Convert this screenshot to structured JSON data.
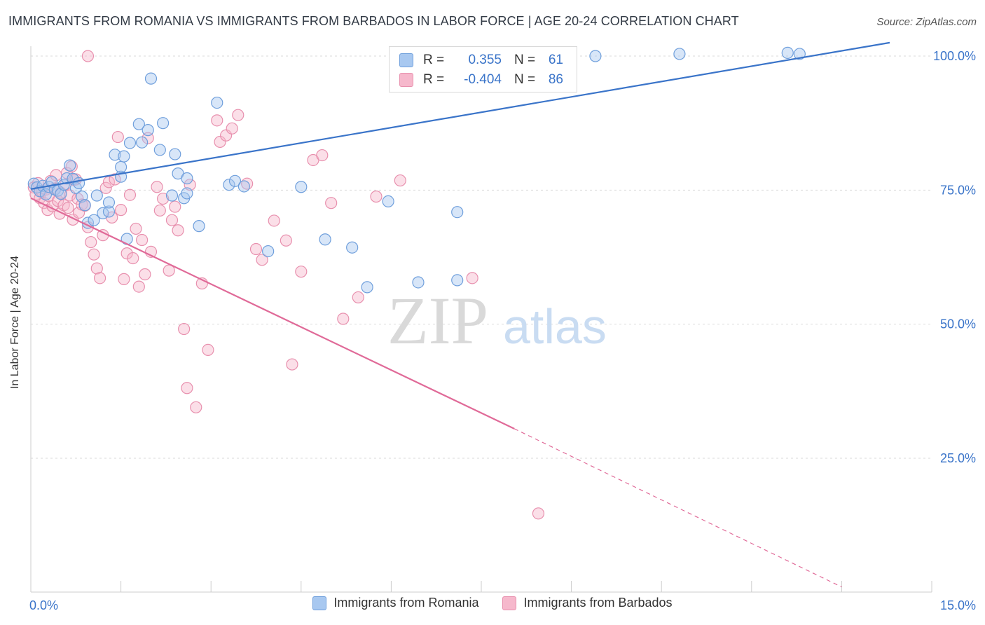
{
  "title": "IMMIGRANTS FROM ROMANIA VS IMMIGRANTS FROM BARBADOS IN LABOR FORCE | AGE 20-24 CORRELATION CHART",
  "source": "Source: ZipAtlas.com",
  "watermark": {
    "zip": "ZIP",
    "atlas": "atlas"
  },
  "legend": {
    "romania": "Immigrants from Romania",
    "barbados": "Immigrants from Barbados"
  },
  "stats": {
    "romania": {
      "r_label": "R =",
      "r_value": "0.355",
      "n_label": "N =",
      "n_value": "61"
    },
    "barbados": {
      "r_label": "R =",
      "r_value": "-0.404",
      "n_label": "N =",
      "n_value": "86"
    }
  },
  "colors": {
    "romania_fill": "#a8c8f0",
    "romania_stroke": "#6f9fdc",
    "romania_line": "#3a74c9",
    "barbados_fill": "#f6b8cc",
    "barbados_stroke": "#e890ae",
    "barbados_line": "#e06a98",
    "axis_text": "#3a74c9",
    "grid": "#d9d9d9"
  },
  "chart_data": {
    "type": "scatter",
    "title": "IMMIGRANTS FROM ROMANIA VS IMMIGRANTS FROM BARBADOS IN LABOR FORCE | AGE 20-24 CORRELATION CHART",
    "xlabel": "",
    "ylabel": "In Labor Force | Age 20-24",
    "xlim": [
      0,
      15
    ],
    "ylim": [
      0,
      105
    ],
    "x_tick_labels": [
      "0.0%",
      "15.0%"
    ],
    "y_ticks": [
      25,
      50,
      75,
      100
    ],
    "y_tick_labels": [
      "25.0%",
      "50.0%",
      "75.0%",
      "100.0%"
    ],
    "grid": true,
    "legend_position": "bottom",
    "series": [
      {
        "name": "Immigrants from Romania",
        "trend": {
          "x": [
            0.0,
            14.3
          ],
          "y": [
            75.2,
            102.5
          ],
          "dashed_from": null
        },
        "points": [
          [
            0.05,
            76.2
          ],
          [
            0.1,
            75.5
          ],
          [
            0.15,
            74.8
          ],
          [
            0.2,
            75.8
          ],
          [
            0.25,
            74.2
          ],
          [
            0.3,
            75.6
          ],
          [
            0.35,
            76.5
          ],
          [
            0.4,
            75.1
          ],
          [
            0.45,
            74.9
          ],
          [
            0.5,
            74.3
          ],
          [
            0.55,
            76.0
          ],
          [
            0.6,
            77.2
          ],
          [
            0.65,
            79.6
          ],
          [
            0.7,
            77.1
          ],
          [
            0.75,
            75.4
          ],
          [
            0.8,
            76.3
          ],
          [
            0.85,
            73.8
          ],
          [
            0.9,
            72.2
          ],
          [
            0.95,
            68.9
          ],
          [
            1.05,
            69.4
          ],
          [
            1.1,
            74.0
          ],
          [
            1.2,
            70.7
          ],
          [
            1.3,
            71.0
          ],
          [
            1.3,
            72.7
          ],
          [
            1.4,
            81.6
          ],
          [
            1.5,
            77.5
          ],
          [
            1.5,
            79.3
          ],
          [
            1.55,
            81.3
          ],
          [
            1.6,
            65.9
          ],
          [
            1.65,
            83.8
          ],
          [
            1.8,
            87.3
          ],
          [
            1.85,
            83.9
          ],
          [
            1.95,
            86.2
          ],
          [
            2.0,
            95.8
          ],
          [
            2.15,
            82.5
          ],
          [
            2.2,
            87.5
          ],
          [
            2.35,
            74.0
          ],
          [
            2.4,
            81.7
          ],
          [
            2.45,
            78.1
          ],
          [
            2.55,
            73.5
          ],
          [
            2.6,
            74.4
          ],
          [
            2.6,
            77.2
          ],
          [
            2.8,
            68.3
          ],
          [
            3.1,
            91.3
          ],
          [
            3.3,
            76.0
          ],
          [
            3.4,
            76.7
          ],
          [
            3.55,
            75.7
          ],
          [
            3.95,
            63.6
          ],
          [
            4.5,
            75.6
          ],
          [
            4.9,
            65.8
          ],
          [
            5.35,
            64.3
          ],
          [
            5.6,
            56.9
          ],
          [
            5.95,
            72.9
          ],
          [
            6.45,
            57.8
          ],
          [
            7.1,
            58.2
          ],
          [
            7.1,
            70.9
          ],
          [
            8.8,
            100.4
          ],
          [
            9.4,
            100.0
          ],
          [
            10.8,
            100.4
          ],
          [
            12.6,
            100.6
          ],
          [
            12.8,
            100.4
          ]
        ]
      },
      {
        "name": "Immigrants from Barbados",
        "trend": {
          "x": [
            0.0,
            8.05,
            13.5
          ],
          "y": [
            73.5,
            30.5,
            1.0
          ],
          "dashed_from": 8.05
        },
        "points": [
          [
            0.05,
            75.5
          ],
          [
            0.08,
            74.2
          ],
          [
            0.12,
            76.3
          ],
          [
            0.15,
            73.5
          ],
          [
            0.18,
            74.8
          ],
          [
            0.22,
            72.6
          ],
          [
            0.25,
            75.1
          ],
          [
            0.28,
            71.3
          ],
          [
            0.3,
            73.9
          ],
          [
            0.33,
            76.7
          ],
          [
            0.36,
            72.0
          ],
          [
            0.4,
            75.3
          ],
          [
            0.42,
            77.8
          ],
          [
            0.45,
            73.0
          ],
          [
            0.48,
            70.6
          ],
          [
            0.5,
            74.5
          ],
          [
            0.55,
            72.2
          ],
          [
            0.58,
            76.1
          ],
          [
            0.6,
            78.2
          ],
          [
            0.62,
            71.7
          ],
          [
            0.65,
            74.0
          ],
          [
            0.68,
            79.4
          ],
          [
            0.7,
            69.5
          ],
          [
            0.72,
            76.9
          ],
          [
            0.75,
            77.0
          ],
          [
            0.78,
            73.4
          ],
          [
            0.8,
            70.8
          ],
          [
            0.85,
            72.3
          ],
          [
            0.9,
            72.1
          ],
          [
            0.95,
            68.1
          ],
          [
            1.0,
            65.3
          ],
          [
            1.05,
            63.0
          ],
          [
            1.1,
            60.4
          ],
          [
            1.15,
            58.6
          ],
          [
            1.2,
            66.6
          ],
          [
            1.25,
            75.4
          ],
          [
            1.3,
            76.5
          ],
          [
            1.35,
            69.9
          ],
          [
            1.4,
            77.0
          ],
          [
            1.45,
            84.9
          ],
          [
            1.5,
            71.3
          ],
          [
            1.55,
            58.4
          ],
          [
            1.6,
            63.2
          ],
          [
            1.65,
            74.1
          ],
          [
            1.7,
            62.3
          ],
          [
            1.75,
            67.8
          ],
          [
            1.8,
            57.0
          ],
          [
            1.85,
            65.7
          ],
          [
            1.9,
            59.3
          ],
          [
            1.95,
            84.7
          ],
          [
            2.0,
            63.5
          ],
          [
            2.1,
            75.6
          ],
          [
            2.15,
            71.2
          ],
          [
            2.2,
            73.4
          ],
          [
            2.3,
            60.0
          ],
          [
            2.35,
            69.4
          ],
          [
            2.4,
            71.9
          ],
          [
            2.45,
            67.5
          ],
          [
            2.55,
            49.1
          ],
          [
            2.6,
            38.1
          ],
          [
            2.65,
            76.0
          ],
          [
            2.75,
            34.5
          ],
          [
            2.85,
            57.6
          ],
          [
            2.95,
            45.2
          ],
          [
            3.1,
            88.0
          ],
          [
            3.15,
            84.0
          ],
          [
            3.25,
            85.2
          ],
          [
            3.35,
            86.5
          ],
          [
            3.45,
            89.0
          ],
          [
            3.6,
            76.2
          ],
          [
            3.75,
            64.0
          ],
          [
            3.85,
            62.0
          ],
          [
            4.05,
            69.3
          ],
          [
            4.25,
            65.6
          ],
          [
            4.35,
            42.5
          ],
          [
            4.5,
            59.8
          ],
          [
            4.7,
            80.6
          ],
          [
            4.85,
            81.5
          ],
          [
            5.0,
            72.6
          ],
          [
            5.2,
            51.0
          ],
          [
            5.45,
            55.0
          ],
          [
            5.75,
            73.8
          ],
          [
            6.15,
            76.8
          ],
          [
            7.35,
            58.6
          ],
          [
            8.45,
            14.7
          ],
          [
            0.95,
            100.0
          ]
        ]
      }
    ]
  }
}
